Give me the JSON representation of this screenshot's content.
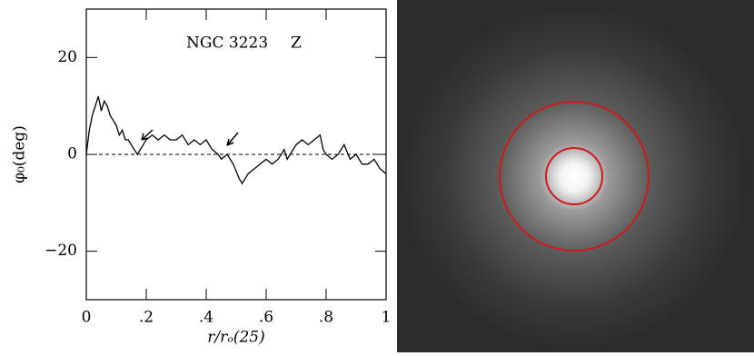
{
  "chart_data": {
    "type": "line",
    "title": "NGC 3223",
    "band_label": "Z",
    "xlabel": "r/rₒ(25)",
    "ylabel": "φ₀(deg)",
    "x": [
      0,
      0.01,
      0.02,
      0.03,
      0.04,
      0.05,
      0.06,
      0.07,
      0.08,
      0.09,
      0.1,
      0.11,
      0.12,
      0.13,
      0.14,
      0.15,
      0.16,
      0.17,
      0.18,
      0.19,
      0.2,
      0.22,
      0.24,
      0.26,
      0.28,
      0.3,
      0.32,
      0.34,
      0.36,
      0.38,
      0.4,
      0.42,
      0.44,
      0.45,
      0.47,
      0.49,
      0.51,
      0.52,
      0.54,
      0.56,
      0.58,
      0.6,
      0.62,
      0.64,
      0.66,
      0.67,
      0.68,
      0.7,
      0.72,
      0.74,
      0.76,
      0.78,
      0.79,
      0.8,
      0.82,
      0.84,
      0.86,
      0.88,
      0.9,
      0.92,
      0.94,
      0.96,
      0.98,
      1.0
    ],
    "values": [
      0,
      5,
      8,
      10,
      12,
      9,
      11,
      10,
      8,
      7,
      6,
      4,
      5,
      3,
      3,
      2,
      1,
      0,
      1,
      2,
      3,
      4,
      3,
      4,
      3,
      3,
      4,
      2,
      3,
      2,
      3,
      1,
      0,
      -1,
      0,
      -2,
      -5,
      -6,
      -4,
      -3,
      -2,
      -1,
      -2,
      -1,
      1,
      -1,
      0,
      2,
      3,
      2,
      3,
      4,
      1,
      0,
      -1,
      0,
      2,
      -1,
      0,
      -2,
      -2,
      -1,
      -3,
      -4
    ],
    "color": "#000000",
    "hline": 0,
    "xlim": [
      0,
      1
    ],
    "ylim": [
      -30,
      30
    ],
    "xticks": [
      0,
      {
        "value": 0.2,
        "label": ".2"
      },
      {
        "value": 0.4,
        "label": ".4"
      },
      {
        "value": 0.6,
        "label": ".6"
      },
      {
        "value": 0.8,
        "label": ".8"
      },
      1
    ],
    "yticks": [
      {
        "value": -20,
        "label": "−20"
      },
      0,
      20
    ]
  }
}
